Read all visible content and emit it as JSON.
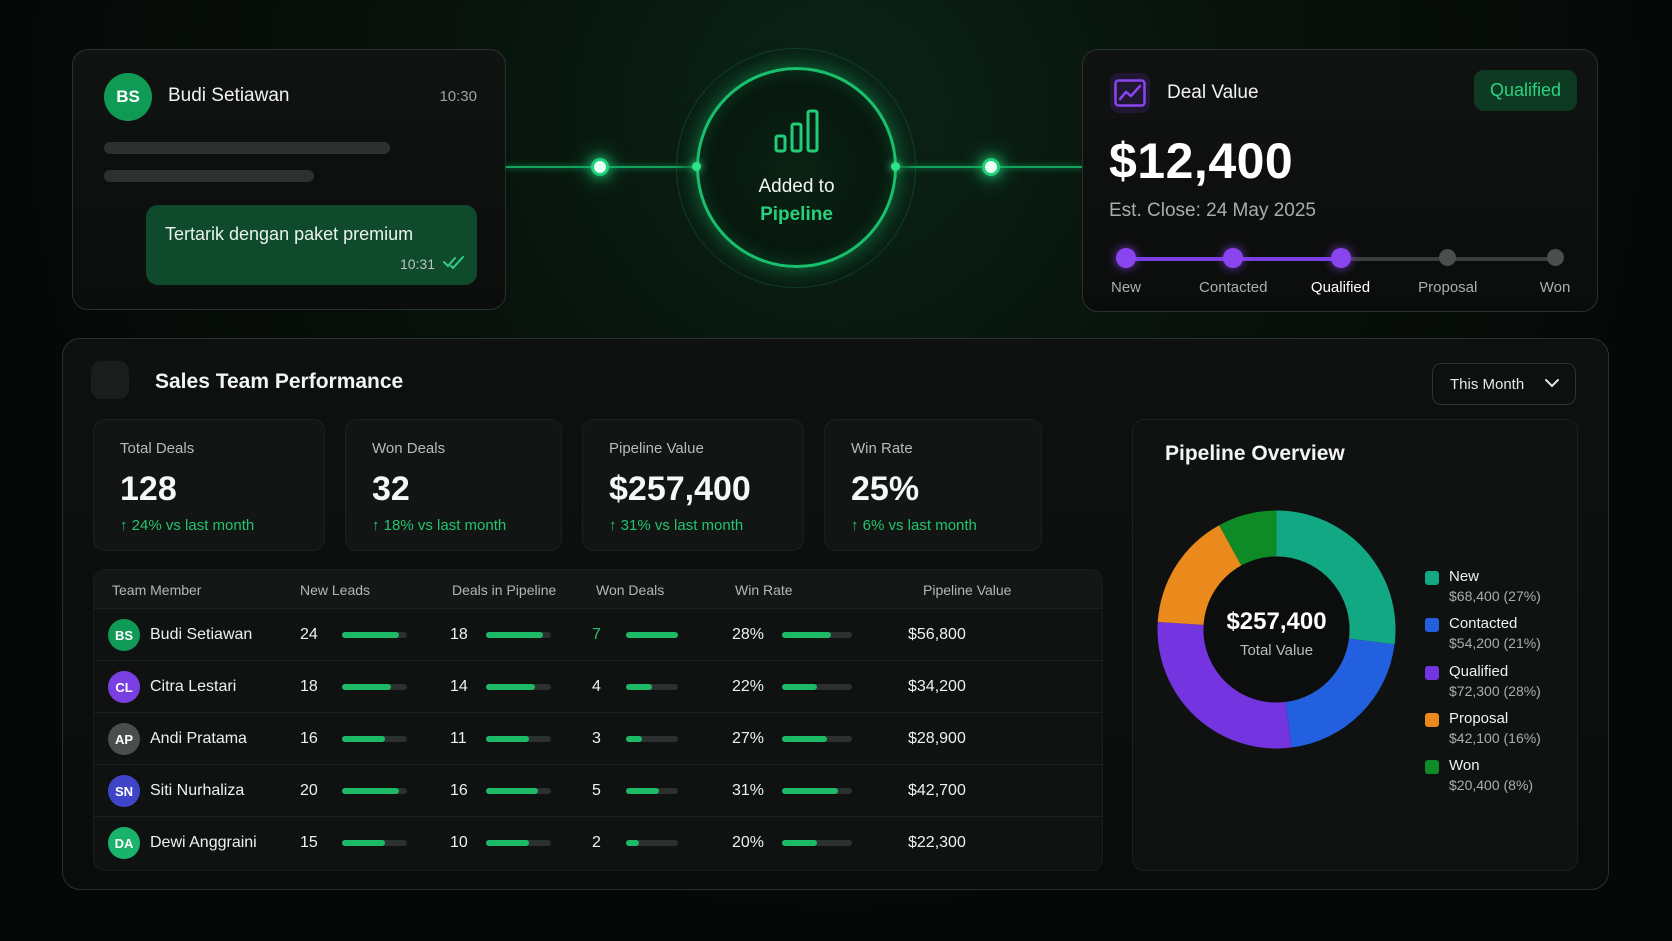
{
  "chat": {
    "avatar_initials": "BS",
    "name": "Budi Setiawan",
    "time": "10:30",
    "message": "Tertarik dengan paket premium",
    "message_time": "10:31"
  },
  "pipeline_badge": {
    "line1": "Added to",
    "line2": "Pipeline",
    "icon": "bar-chart-icon"
  },
  "deal": {
    "title": "Deal Value",
    "icon": "trend-chart-icon",
    "badge": "Qualified",
    "value": "$12,400",
    "close": "Est. Close: 24 May 2025",
    "stages": [
      "New",
      "Contacted",
      "Qualified",
      "Proposal",
      "Won"
    ],
    "active_stage_index": 2
  },
  "performance": {
    "title": "Sales Team Performance",
    "period": "This Month",
    "stats": [
      {
        "label": "Total Deals",
        "value": "128",
        "change": "24% vs last month"
      },
      {
        "label": "Won Deals",
        "value": "32",
        "change": "18% vs last month"
      },
      {
        "label": "Pipeline Value",
        "value": "$257,400",
        "change": "31% vs last month"
      },
      {
        "label": "Win Rate",
        "value": "25%",
        "change": "6% vs last month"
      }
    ],
    "table": {
      "headers": [
        "Team Member",
        "New Leads",
        "Deals in Pipeline",
        "Won Deals",
        "Win Rate",
        "Pipeline Value"
      ],
      "rows": [
        {
          "initials": "BS",
          "avatar_color": "#0f9a55",
          "name": "Budi Setiawan",
          "new_leads": "24",
          "leads_level": 0.88,
          "pipeline": "18",
          "pipeline_level": 0.88,
          "won": "7",
          "won_level": 1.0,
          "win_rate": "28%",
          "win_level": 0.7,
          "value": "$56,800"
        },
        {
          "initials": "CL",
          "avatar_color": "#7a3fe0",
          "name": "Citra Lestari",
          "new_leads": "18",
          "leads_level": 0.75,
          "pipeline": "14",
          "pipeline_level": 0.75,
          "won": "4",
          "won_level": 0.5,
          "win_rate": "22%",
          "win_level": 0.5,
          "value": "$34,200"
        },
        {
          "initials": "AP",
          "avatar_color": "#4a4f4c",
          "name": "Andi Pratama",
          "new_leads": "16",
          "leads_level": 0.66,
          "pipeline": "11",
          "pipeline_level": 0.66,
          "won": "3",
          "won_level": 0.3,
          "win_rate": "27%",
          "win_level": 0.64,
          "value": "$28,900"
        },
        {
          "initials": "SN",
          "avatar_color": "#3f45c8",
          "name": "Siti Nurhaliza",
          "new_leads": "20",
          "leads_level": 0.88,
          "pipeline": "16",
          "pipeline_level": 0.8,
          "won": "5",
          "won_level": 0.64,
          "win_rate": "31%",
          "win_level": 0.8,
          "value": "$42,700"
        },
        {
          "initials": "DA",
          "avatar_color": "#19b36c",
          "name": "Dewi Anggraini",
          "new_leads": "15",
          "leads_level": 0.66,
          "pipeline": "10",
          "pipeline_level": 0.66,
          "won": "2",
          "won_level": 0.25,
          "win_rate": "20%",
          "win_level": 0.5,
          "value": "$22,300"
        }
      ]
    }
  },
  "overview": {
    "title": "Pipeline Overview",
    "total_value": "$257,400",
    "total_caption": "Total Value",
    "segments": [
      {
        "name": "New",
        "value": "$68,400 (27%)",
        "share": 27,
        "color": "#13a884"
      },
      {
        "name": "Contacted",
        "value": "$54,200 (21%)",
        "share": 21,
        "color": "#2360e0"
      },
      {
        "name": "Qualified",
        "value": "$72,300 (28%)",
        "share": 28,
        "color": "#7435e0"
      },
      {
        "name": "Proposal",
        "value": "$42,100 (16%)",
        "share": 16,
        "color": "#ea8a1c"
      },
      {
        "name": "Won",
        "value": "$20,400 (8%)",
        "share": 8,
        "color": "#0e8a26"
      }
    ]
  }
}
